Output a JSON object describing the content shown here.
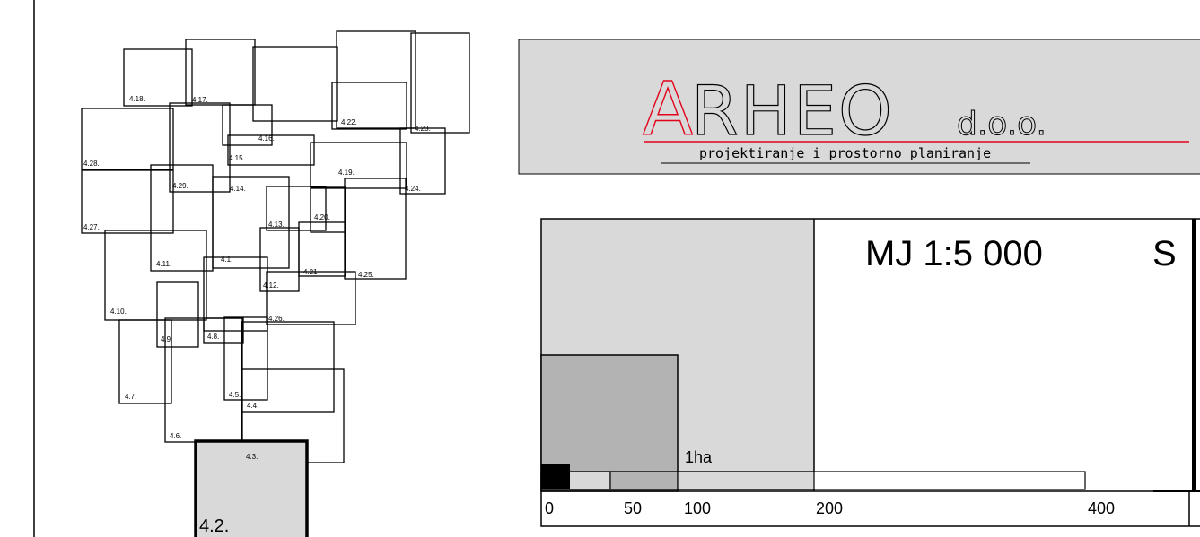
{
  "index_map": {
    "labels": [
      "4.2.",
      "4.3.",
      "4.4.",
      "4.5.",
      "4.6.",
      "4.7.",
      "4.8.",
      "4.9.",
      "4.10.",
      "4.11.",
      "4.1.",
      "4.12.",
      "4.26.",
      "4.21",
      "4.25.",
      "4.13.",
      "4.20.",
      "4.14.",
      "4.29.",
      "4.27.",
      "4.28.",
      "4.15.",
      "4.16.",
      "4.17.",
      "4.18.",
      "4.19.",
      "4.22.",
      "4.23.",
      "4.24."
    ],
    "highlighted_sheet": "4.2."
  },
  "logo": {
    "letter_a": "A",
    "name_rest": "RHEO",
    "suffix": "d.o.o.",
    "tagline": "projektiranje i prostorno planiranje",
    "colors": {
      "accent": "#e2001a",
      "panel": "#d9d9d9"
    }
  },
  "scale_box": {
    "title": "MJ 1:5 000",
    "clipped_char": "S",
    "area_label": "1ha",
    "ticks": [
      "0",
      "50",
      "100",
      "200",
      "400"
    ],
    "colors": {
      "light_fill": "#d9d9d9",
      "dark_fill": "#b3b3b3",
      "solid": "#000000"
    }
  }
}
